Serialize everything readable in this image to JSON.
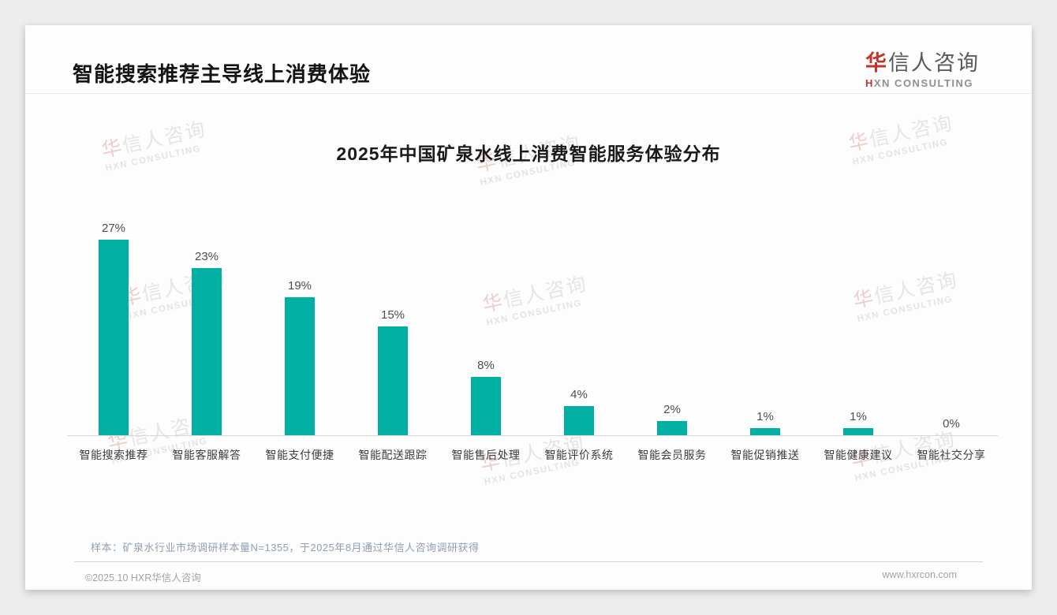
{
  "header": {
    "title": "智能搜索推荐主导线上消费体验"
  },
  "logo": {
    "cn_accent": "华",
    "cn_rest": "信人咨询",
    "sub_accent": "H",
    "sub_rest": "XN CONSULTING"
  },
  "chart_data": {
    "type": "bar",
    "title": "2025年中国矿泉水线上消费智能服务体验分布",
    "categories": [
      "智能搜索推荐",
      "智能客服解答",
      "智能支付便捷",
      "智能配送跟踪",
      "智能售后处理",
      "智能评价系统",
      "智能会员服务",
      "智能促销推送",
      "智能健康建议",
      "智能社交分享"
    ],
    "values": [
      27,
      23,
      19,
      15,
      8,
      4,
      2,
      1,
      1,
      0
    ],
    "value_labels": [
      "27%",
      "23%",
      "19%",
      "15%",
      "8%",
      "4%",
      "2%",
      "1%",
      "1%",
      "0%"
    ],
    "xlabel": "",
    "ylabel": "",
    "ylim": [
      0,
      30
    ],
    "grid": false,
    "legend": "none",
    "y_axis_visible": false,
    "bar_color": "#02AFA3",
    "axis_line_color": "#d8d8d8"
  },
  "watermark": {
    "line1_accent": "华",
    "line1_rest": "信人咨询",
    "line2": "HXN CONSULTING"
  },
  "note": {
    "text": "样本：矿泉水行业市场调研样本量N=1355，于2025年8月通过华信人咨询调研获得"
  },
  "footer": {
    "left": "©2025.10 HXR华信人咨询",
    "right": "www.hxrcon.com"
  }
}
